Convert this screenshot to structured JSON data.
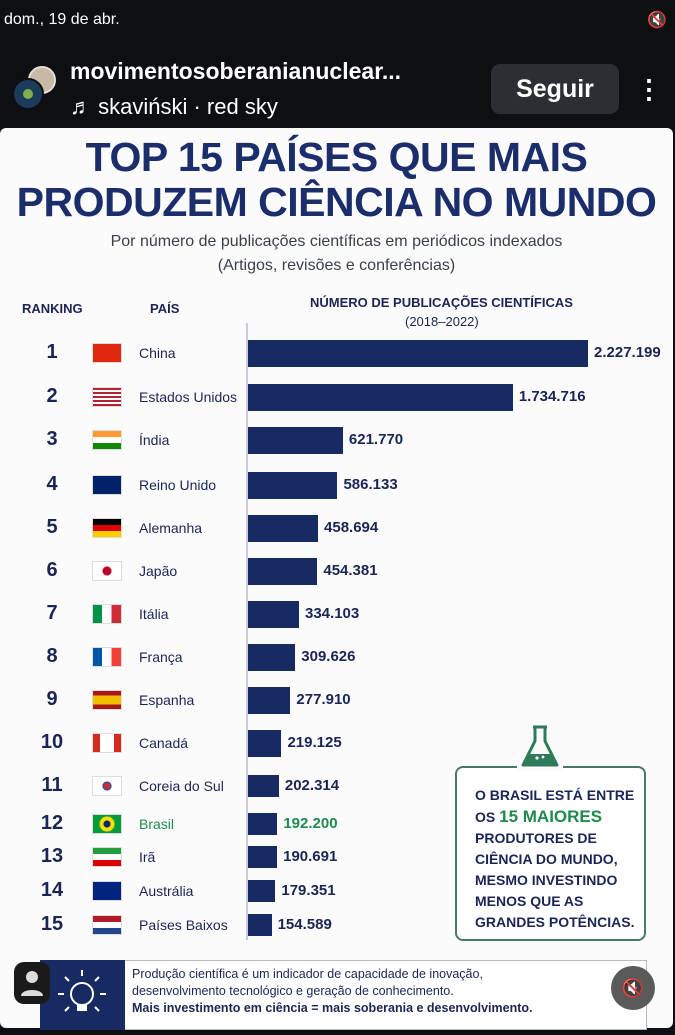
{
  "status": {
    "date": "dom., 19 de abr."
  },
  "header": {
    "username": "movimentosoberanianuclear...",
    "music_icon": "♬",
    "music": "skaviński · red sky",
    "follow_label": "Seguir",
    "more_icon": "⋮"
  },
  "infographic": {
    "title_line1": "TOP 15 PAÍSES QUE MAIS",
    "title_line2": "PRODUZEM CIÊNCIA NO MUNDO",
    "subtitle_line1": "Por número de publicações científicas em periódicos indexados",
    "subtitle_line2": "(Artigos, revisões e conferências)",
    "col_ranking": "RANKING",
    "col_country": "PAÍS",
    "col_pubs": "NÚMERO DE PUBLICAÇÕES CIENTÍFICAS",
    "col_period": "(2018–2022)",
    "callout": {
      "line1": "O BRASIL ESTÁ ENTRE",
      "line2a": "OS ",
      "line2b": "15 MAIORES",
      "line3": "PRODUTORES DE",
      "line4": "CIÊNCIA DO MUNDO,",
      "line5": "MESMO INVESTINDO",
      "line6": "MENOS QUE AS",
      "line7": "GRANDES POTÊNCIAS."
    },
    "footer": {
      "line1": "Produção científica é um indicador de capacidade de inovação,",
      "line2": "desenvolvimento tecnológico e geração de conhecimento.",
      "line3": "Mais investimento em ciência = mais soberania e desenvolvimento."
    }
  },
  "colors": {
    "bar": "#172a62",
    "highlight": "#1e8a4c",
    "title": "#1b2e6b"
  },
  "chart_data": {
    "type": "bar",
    "orientation": "horizontal",
    "title": "TOP 15 PAÍSES QUE MAIS PRODUZEM CIÊNCIA NO MUNDO",
    "xlabel": "NÚMERO DE PUBLICAÇÕES CIENTÍFICAS (2018–2022)",
    "rows": [
      {
        "rank": "1",
        "country": "China",
        "value": 2227199,
        "label": "2.227.199",
        "flag": "cn"
      },
      {
        "rank": "2",
        "country": "Estados Unidos",
        "value": 1734716,
        "label": "1.734.716",
        "flag": "us"
      },
      {
        "rank": "3",
        "country": "Índia",
        "value": 621770,
        "label": "621.770",
        "flag": "in"
      },
      {
        "rank": "4",
        "country": "Reino Unido",
        "value": 586133,
        "label": "586.133",
        "flag": "gb"
      },
      {
        "rank": "5",
        "country": "Alemanha",
        "value": 458694,
        "label": "458.694",
        "flag": "de"
      },
      {
        "rank": "6",
        "country": "Japão",
        "value": 454381,
        "label": "454.381",
        "flag": "jp"
      },
      {
        "rank": "7",
        "country": "Itália",
        "value": 334103,
        "label": "334.103",
        "flag": "it"
      },
      {
        "rank": "8",
        "country": "França",
        "value": 309626,
        "label": "309.626",
        "flag": "fr"
      },
      {
        "rank": "9",
        "country": "Espanha",
        "value": 277910,
        "label": "277.910",
        "flag": "es"
      },
      {
        "rank": "10",
        "country": "Canadá",
        "value": 219125,
        "label": "219.125",
        "flag": "ca"
      },
      {
        "rank": "11",
        "country": "Coreia do Sul",
        "value": 202314,
        "label": "202.314",
        "flag": "kr"
      },
      {
        "rank": "12",
        "country": "Brasil",
        "value": 192200,
        "label": "192.200",
        "flag": "br",
        "highlight": true
      },
      {
        "rank": "13",
        "country": "Irã",
        "value": 190691,
        "label": "190.691",
        "flag": "ir"
      },
      {
        "rank": "14",
        "country": "Austrália",
        "value": 179351,
        "label": "179.351",
        "flag": "au"
      },
      {
        "rank": "15",
        "country": "Países Baixos",
        "value": 154589,
        "label": "154.589",
        "flag": "nl"
      }
    ],
    "xlim": [
      0,
      2227199
    ]
  }
}
